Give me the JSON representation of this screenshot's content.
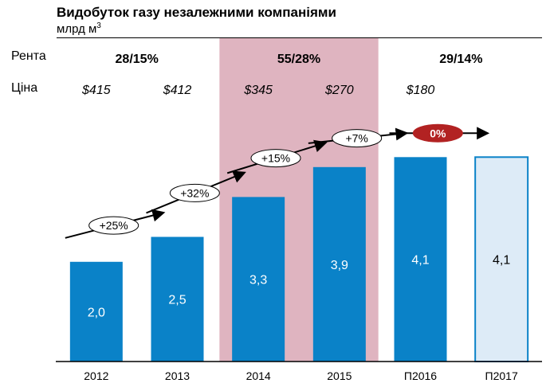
{
  "header": {
    "title": "Видобуток газу незалежними компаніями",
    "unit_text": "млрд м",
    "unit_sup": "3"
  },
  "rows": {
    "rent_label": "Рента",
    "price_label": "Ціна"
  },
  "colors": {
    "bar": "#0a82c8",
    "bar_forecast_fill": "#ddebf7",
    "bar_forecast_stroke": "#0a82c8",
    "highlight": "#dfb4c0",
    "badge_red": "#b22222"
  },
  "chart_data": {
    "type": "bar",
    "title": "Видобуток газу незалежними компаніями",
    "ylabel": "млрд м³",
    "categories": [
      "2012",
      "2013",
      "2014",
      "2015",
      "П2016",
      "П2017"
    ],
    "values": [
      2.0,
      2.5,
      3.3,
      3.9,
      4.1,
      4.1
    ],
    "value_labels": [
      "2,0",
      "2,5",
      "3,3",
      "3,9",
      "4,1",
      "4,1"
    ],
    "forecast": [
      false,
      false,
      false,
      false,
      false,
      true
    ],
    "ylim": [
      0,
      4.6
    ],
    "prices": [
      "$415",
      "$412",
      "$345",
      "$270",
      "$180"
    ],
    "rent_groups": [
      {
        "label": "28/15%",
        "from": 0,
        "to": 1
      },
      {
        "label": "55/28%",
        "from": 2,
        "to": 3,
        "highlight": true
      },
      {
        "label": "29/14%",
        "from": 4,
        "to": 5
      }
    ],
    "growth": [
      {
        "label": "+25%",
        "between": [
          0,
          1
        ]
      },
      {
        "label": "+32%",
        "between": [
          1,
          2
        ]
      },
      {
        "label": "+15%",
        "between": [
          2,
          3
        ]
      },
      {
        "label": "+7%",
        "between": [
          3,
          4
        ]
      },
      {
        "label": "0%",
        "between": [
          4,
          5
        ],
        "badge": "red"
      }
    ]
  }
}
